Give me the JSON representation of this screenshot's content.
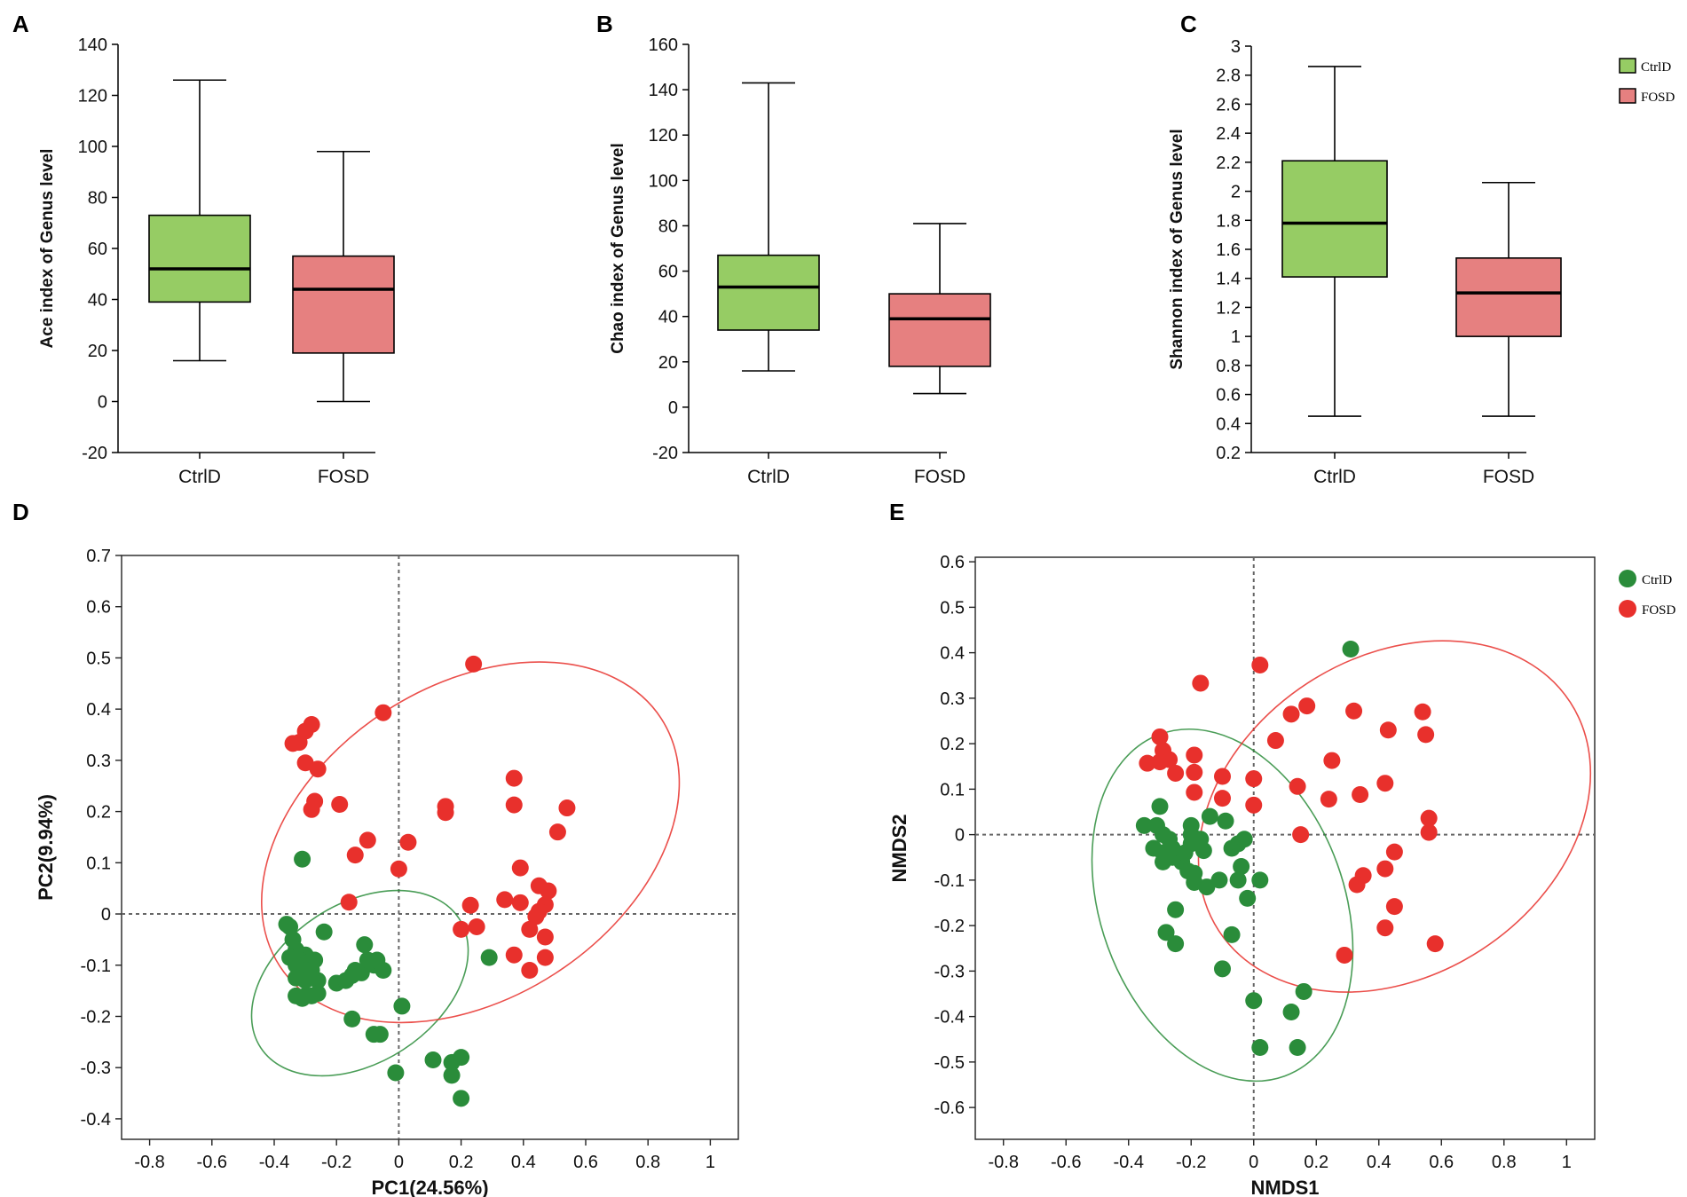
{
  "figure": {
    "box_legend": {
      "items": [
        {
          "label": "CtrlD",
          "color": "#96cc64"
        },
        {
          "label": "FOSD",
          "color": "#e68080"
        }
      ]
    },
    "scatter_legend": {
      "items": [
        {
          "label": "CtrlD",
          "color": "#2a8c3a"
        },
        {
          "label": "FOSD",
          "color": "#e8302c"
        }
      ]
    }
  },
  "chart_data": [
    {
      "id": "A",
      "panel_label": "A",
      "type": "box",
      "ylabel": "Ace index of Genus level",
      "xlabel": "",
      "ylim": [
        -20,
        140
      ],
      "yticks": [
        -20,
        0,
        20,
        40,
        60,
        80,
        100,
        120,
        140
      ],
      "ytick_labels": [
        "-20",
        "0",
        "20",
        "40",
        "60",
        "80",
        "100",
        "120",
        "140"
      ],
      "categories": [
        "CtrlD",
        "FOSD"
      ],
      "series": [
        {
          "name": "CtrlD",
          "color": "#96cc64",
          "whisker_low": 16,
          "q1": 39,
          "median": 52,
          "q3": 73,
          "whisker_high": 126
        },
        {
          "name": "FOSD",
          "color": "#e68080",
          "whisker_low": 0,
          "q1": 19,
          "median": 44,
          "q3": 57,
          "whisker_high": 98
        }
      ]
    },
    {
      "id": "B",
      "panel_label": "B",
      "type": "box",
      "ylabel": "Chao index of Genus level",
      "xlabel": "",
      "ylim": [
        -20,
        160
      ],
      "yticks": [
        -20,
        0,
        20,
        40,
        60,
        80,
        100,
        120,
        140,
        160
      ],
      "ytick_labels": [
        "-20",
        "0",
        "20",
        "40",
        "60",
        "80",
        "100",
        "120",
        "140",
        "160"
      ],
      "categories": [
        "CtrlD",
        "FOSD"
      ],
      "series": [
        {
          "name": "CtrlD",
          "color": "#96cc64",
          "whisker_low": 16,
          "q1": 34,
          "median": 53,
          "q3": 67,
          "whisker_high": 143
        },
        {
          "name": "FOSD",
          "color": "#e68080",
          "whisker_low": 6,
          "q1": 18,
          "median": 39,
          "q3": 50,
          "whisker_high": 81
        }
      ]
    },
    {
      "id": "C",
      "panel_label": "C",
      "type": "box",
      "ylabel": "Shannon index of Genus level",
      "xlabel": "",
      "ylim": [
        0.2,
        3.0
      ],
      "yticks": [
        0.2,
        0.4,
        0.6,
        0.8,
        1.0,
        1.2,
        1.4,
        1.6,
        1.8,
        2.0,
        2.2,
        2.4,
        2.6,
        2.8,
        3.0
      ],
      "ytick_labels": [
        "0.2",
        "0.4",
        "0.6",
        "0.8",
        "1",
        "1.2",
        "1.4",
        "1.6",
        "1.8",
        "2",
        "2.2",
        "2.4",
        "2.6",
        "2.8",
        "3"
      ],
      "categories": [
        "CtrlD",
        "FOSD"
      ],
      "series": [
        {
          "name": "CtrlD",
          "color": "#96cc64",
          "whisker_low": 0.45,
          "q1": 1.41,
          "median": 1.78,
          "q3": 2.21,
          "whisker_high": 2.86
        },
        {
          "name": "FOSD",
          "color": "#e68080",
          "whisker_low": 0.45,
          "q1": 1.0,
          "median": 1.3,
          "q3": 1.54,
          "whisker_high": 2.06
        }
      ]
    },
    {
      "id": "D",
      "panel_label": "D",
      "type": "scatter",
      "xlabel": "PC1(24.56%)",
      "ylabel": "PC2(9.94%)",
      "xlim": [
        -0.89,
        1.09
      ],
      "ylim": [
        -0.44,
        0.7
      ],
      "xticks": [
        -0.8,
        -0.6,
        -0.4,
        -0.2,
        0,
        0.2,
        0.4,
        0.6,
        0.8,
        1
      ],
      "xtick_labels": [
        "-0.8",
        "-0.6",
        "-0.4",
        "-0.2",
        "0",
        "0.2",
        "0.4",
        "0.6",
        "0.8",
        "1"
      ],
      "yticks": [
        -0.4,
        -0.3,
        -0.2,
        -0.1,
        0,
        0.1,
        0.2,
        0.3,
        0.4,
        0.5,
        0.6,
        0.7
      ],
      "ytick_labels": [
        "-0.4",
        "-0.3",
        "-0.2",
        "-0.1",
        "0",
        "0.1",
        "0.2",
        "0.3",
        "0.4",
        "0.5",
        "0.6",
        "0.7"
      ],
      "series": [
        {
          "name": "CtrlD",
          "color": "#2a8c3a",
          "ellipse": {
            "cx": -0.125,
            "cy": -0.135,
            "rx": 0.38,
            "ry": 0.155,
            "angle": -33
          },
          "points": [
            [
              -0.31,
              0.107
            ],
            [
              -0.36,
              -0.02
            ],
            [
              -0.35,
              -0.025
            ],
            [
              -0.34,
              -0.05
            ],
            [
              -0.33,
              -0.07
            ],
            [
              -0.3,
              -0.08
            ],
            [
              -0.35,
              -0.085
            ],
            [
              -0.32,
              -0.09
            ],
            [
              -0.29,
              -0.095
            ],
            [
              -0.27,
              -0.09
            ],
            [
              -0.33,
              -0.1
            ],
            [
              -0.3,
              -0.11
            ],
            [
              -0.28,
              -0.11
            ],
            [
              -0.33,
              -0.125
            ],
            [
              -0.3,
              -0.13
            ],
            [
              -0.26,
              -0.13
            ],
            [
              -0.33,
              -0.16
            ],
            [
              -0.31,
              -0.165
            ],
            [
              -0.3,
              -0.16
            ],
            [
              -0.28,
              -0.16
            ],
            [
              -0.26,
              -0.155
            ],
            [
              -0.24,
              -0.035
            ],
            [
              -0.2,
              -0.135
            ],
            [
              -0.17,
              -0.13
            ],
            [
              -0.15,
              -0.12
            ],
            [
              -0.14,
              -0.11
            ],
            [
              -0.12,
              -0.115
            ],
            [
              -0.1,
              -0.09
            ],
            [
              -0.11,
              -0.06
            ],
            [
              -0.08,
              -0.1
            ],
            [
              -0.07,
              -0.09
            ],
            [
              -0.05,
              -0.11
            ],
            [
              -0.15,
              -0.205
            ],
            [
              -0.08,
              -0.235
            ],
            [
              -0.06,
              -0.235
            ],
            [
              0.01,
              -0.18
            ],
            [
              -0.01,
              -0.31
            ],
            [
              0.11,
              -0.285
            ],
            [
              0.17,
              -0.29
            ],
            [
              0.2,
              -0.28
            ],
            [
              0.17,
              -0.315
            ],
            [
              0.2,
              -0.36
            ],
            [
              0.29,
              -0.085
            ]
          ]
        },
        {
          "name": "FOSD",
          "color": "#e8302c",
          "ellipse": {
            "cx": 0.23,
            "cy": 0.14,
            "rx": 0.73,
            "ry": 0.305,
            "angle": -33
          },
          "points": [
            [
              0.24,
              0.488
            ],
            [
              -0.05,
              0.393
            ],
            [
              -0.34,
              0.333
            ],
            [
              -0.32,
              0.335
            ],
            [
              -0.3,
              0.357
            ],
            [
              -0.28,
              0.37
            ],
            [
              -0.3,
              0.295
            ],
            [
              -0.26,
              0.283
            ],
            [
              -0.27,
              0.22
            ],
            [
              -0.28,
              0.204
            ],
            [
              -0.19,
              0.214
            ],
            [
              -0.1,
              0.144
            ],
            [
              -0.14,
              0.115
            ],
            [
              0.03,
              0.14
            ],
            [
              0.0,
              0.088
            ],
            [
              -0.16,
              0.023
            ],
            [
              0.15,
              0.21
            ],
            [
              0.15,
              0.198
            ],
            [
              0.37,
              0.265
            ],
            [
              0.37,
              0.213
            ],
            [
              0.54,
              0.207
            ],
            [
              0.51,
              0.16
            ],
            [
              0.39,
              0.09
            ],
            [
              0.45,
              0.055
            ],
            [
              0.48,
              0.045
            ],
            [
              0.34,
              0.028
            ],
            [
              0.39,
              0.022
            ],
            [
              0.23,
              0.017
            ],
            [
              0.47,
              0.018
            ],
            [
              0.44,
              -0.005
            ],
            [
              0.42,
              -0.03
            ],
            [
              0.47,
              -0.045
            ],
            [
              0.2,
              -0.03
            ],
            [
              0.25,
              -0.025
            ],
            [
              0.37,
              -0.08
            ],
            [
              0.42,
              -0.11
            ],
            [
              0.47,
              -0.085
            ],
            [
              0.45,
              0.005
            ]
          ]
        }
      ]
    },
    {
      "id": "E",
      "panel_label": "E",
      "type": "scatter",
      "xlabel": "NMDS1",
      "ylabel": "NMDS2",
      "xlim": [
        -0.89,
        1.09
      ],
      "ylim": [
        -0.67,
        0.61
      ],
      "xticks": [
        -0.8,
        -0.6,
        -0.4,
        -0.2,
        0,
        0.2,
        0.4,
        0.6,
        0.8,
        1
      ],
      "xtick_labels": [
        "-0.8",
        "-0.6",
        "-0.4",
        "-0.2",
        "0",
        "0.2",
        "0.4",
        "0.6",
        "0.8",
        "1"
      ],
      "yticks": [
        -0.6,
        -0.5,
        -0.4,
        -0.3,
        -0.2,
        -0.1,
        0,
        0.1,
        0.2,
        0.3,
        0.4,
        0.5,
        0.6
      ],
      "ytick_labels": [
        "-0.6",
        "-0.5",
        "-0.4",
        "-0.3",
        "-0.2",
        "-0.1",
        "0",
        "0.1",
        "0.2",
        "0.3",
        "0.4",
        "0.5",
        "0.6"
      ],
      "series": [
        {
          "name": "CtrlD",
          "color": "#2a8c3a",
          "ellipse": {
            "cx": -0.1,
            "cy": -0.155,
            "rx": 0.39,
            "ry": 0.4,
            "angle": -20
          },
          "points": [
            [
              0.31,
              0.408
            ],
            [
              -0.3,
              0.062
            ],
            [
              -0.35,
              0.02
            ],
            [
              -0.31,
              0.02
            ],
            [
              -0.29,
              0.0
            ],
            [
              -0.27,
              -0.01
            ],
            [
              -0.32,
              -0.03
            ],
            [
              -0.29,
              -0.04
            ],
            [
              -0.26,
              -0.05
            ],
            [
              -0.23,
              -0.06
            ],
            [
              -0.21,
              -0.08
            ],
            [
              -0.19,
              -0.085
            ],
            [
              -0.29,
              -0.06
            ],
            [
              -0.26,
              -0.03
            ],
            [
              -0.22,
              -0.04
            ],
            [
              -0.2,
              -0.02
            ],
            [
              -0.2,
              0.02
            ],
            [
              -0.2,
              0.0
            ],
            [
              -0.17,
              -0.01
            ],
            [
              -0.16,
              -0.035
            ],
            [
              -0.14,
              0.04
            ],
            [
              -0.09,
              0.03
            ],
            [
              -0.07,
              -0.03
            ],
            [
              -0.04,
              -0.07
            ],
            [
              -0.05,
              -0.02
            ],
            [
              -0.03,
              -0.01
            ],
            [
              -0.05,
              -0.1
            ],
            [
              -0.02,
              -0.14
            ],
            [
              0.02,
              -0.1
            ],
            [
              -0.11,
              -0.1
            ],
            [
              -0.15,
              -0.115
            ],
            [
              -0.19,
              -0.105
            ],
            [
              -0.25,
              -0.165
            ],
            [
              -0.28,
              -0.215
            ],
            [
              -0.25,
              -0.24
            ],
            [
              -0.07,
              -0.22
            ],
            [
              -0.1,
              -0.295
            ],
            [
              0.0,
              -0.365
            ],
            [
              0.16,
              -0.345
            ],
            [
              0.12,
              -0.39
            ],
            [
              0.02,
              -0.468
            ],
            [
              0.14,
              -0.468
            ]
          ]
        },
        {
          "name": "FOSD",
          "color": "#e8302c",
          "ellipse": {
            "cx": 0.45,
            "cy": 0.04,
            "rx": 0.67,
            "ry": 0.35,
            "angle": -33
          },
          "points": [
            [
              -0.17,
              0.333
            ],
            [
              0.02,
              0.373
            ],
            [
              0.17,
              0.283
            ],
            [
              0.12,
              0.265
            ],
            [
              0.32,
              0.272
            ],
            [
              0.43,
              0.23
            ],
            [
              0.54,
              0.27
            ],
            [
              0.55,
              0.22
            ],
            [
              0.07,
              0.207
            ],
            [
              0.25,
              0.163
            ],
            [
              -0.3,
              0.215
            ],
            [
              -0.34,
              0.157
            ],
            [
              -0.29,
              0.185
            ],
            [
              -0.27,
              0.165
            ],
            [
              -0.3,
              0.16
            ],
            [
              -0.25,
              0.135
            ],
            [
              -0.19,
              0.175
            ],
            [
              -0.19,
              0.137
            ],
            [
              -0.1,
              0.128
            ],
            [
              -0.1,
              0.08
            ],
            [
              -0.19,
              0.093
            ],
            [
              0.0,
              0.123
            ],
            [
              0.0,
              0.065
            ],
            [
              0.14,
              0.106
            ],
            [
              0.24,
              0.078
            ],
            [
              0.34,
              0.088
            ],
            [
              0.42,
              0.113
            ],
            [
              0.56,
              0.036
            ],
            [
              0.56,
              0.005
            ],
            [
              0.15,
              0.0
            ],
            [
              0.45,
              -0.038
            ],
            [
              0.42,
              -0.075
            ],
            [
              0.35,
              -0.09
            ],
            [
              0.33,
              -0.11
            ],
            [
              0.45,
              -0.158
            ],
            [
              0.42,
              -0.205
            ],
            [
              0.29,
              -0.265
            ],
            [
              0.58,
              -0.24
            ]
          ]
        }
      ]
    }
  ]
}
